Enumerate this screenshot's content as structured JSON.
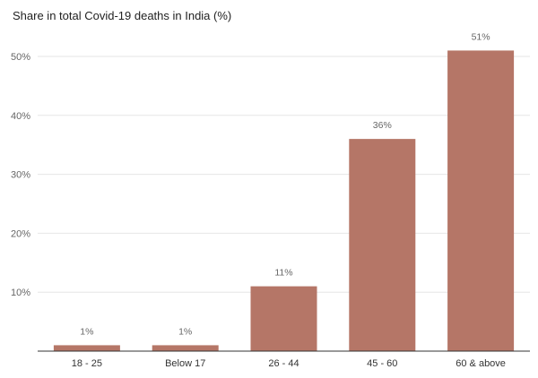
{
  "chart_data": {
    "type": "bar",
    "title": "Share in total Covid-19 deaths in India (%)",
    "xlabel": "",
    "ylabel": "",
    "categories": [
      "18 - 25",
      "Below 17",
      "26 - 44",
      "45 - 60",
      "60 & above"
    ],
    "values": [
      1,
      1,
      11,
      36,
      51
    ],
    "data_labels": [
      "1%",
      "1%",
      "11%",
      "36%",
      "51%"
    ],
    "ylim": [
      0,
      55
    ],
    "yticks": [
      10,
      20,
      30,
      40,
      50
    ],
    "ytick_labels": [
      "10%",
      "20%",
      "30%",
      "40%",
      "50%"
    ],
    "grid": true,
    "bar_color": "#b57667",
    "legend": "none"
  }
}
